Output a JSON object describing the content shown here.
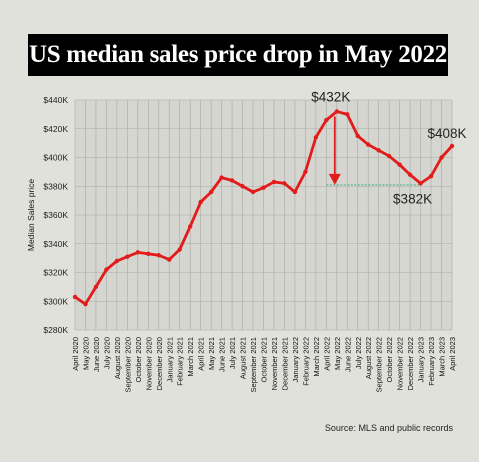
{
  "chart_data": {
    "type": "line",
    "title": "US median sales price drop in May 2022",
    "xlabel": "",
    "ylabel": "Median Sales price",
    "ylim": [
      280000,
      440000
    ],
    "yticks": [
      280000,
      300000,
      320000,
      340000,
      360000,
      380000,
      400000,
      420000,
      440000
    ],
    "ytick_labels": [
      "$280K",
      "$300K",
      "$320K",
      "$340K",
      "$360K",
      "$380K",
      "$400K",
      "$420K",
      "$440K"
    ],
    "grid": true,
    "legend": "none",
    "categories": [
      "April 2020",
      "May 2020",
      "June 2020",
      "July 2020",
      "August 2020",
      "September 2020",
      "October 2020",
      "November 2020",
      "December 2020",
      "January 2021",
      "February 2021",
      "March 2021",
      "April 2021",
      "May 2021",
      "June 2021",
      "July 2021",
      "August 2021",
      "September 2021",
      "October 2021",
      "November 2021",
      "December 2021",
      "January 2022",
      "February 2022",
      "March 2022",
      "April 2022",
      "May 2022",
      "June 2022",
      "July 2022",
      "August 2022",
      "September 2022",
      "October 2022",
      "November 2022",
      "December 2022",
      "January 2023",
      "February 2023",
      "March 2023",
      "April 2023"
    ],
    "series": [
      {
        "color": "#e21b1b",
        "values": [
          303000,
          298000,
          310000,
          322000,
          328000,
          331000,
          334000,
          333000,
          332000,
          329000,
          336000,
          352000,
          369000,
          376000,
          386000,
          384000,
          380000,
          376000,
          379000,
          383000,
          382000,
          376000,
          390000,
          414000,
          426000,
          432000,
          430000,
          415000,
          409000,
          405000,
          401000,
          395000,
          388000,
          382000,
          387000,
          400000,
          408000
        ]
      }
    ],
    "annotations": [
      {
        "text": "$432K",
        "category": "May 2022",
        "value": 432000
      },
      {
        "text": "$382K",
        "category": "January 2023",
        "value": 382000
      },
      {
        "text": "$408K",
        "category": "April 2023",
        "value": 408000
      }
    ],
    "reference_line": {
      "from": "April 2022",
      "to": "January 2023",
      "value": 381000,
      "color": "#6dbf94"
    },
    "arrow": {
      "category": "May 2022",
      "from_value": 432000,
      "to_value": 381000,
      "color": "#e21b1b"
    }
  },
  "source": "Source: MLS and public records"
}
